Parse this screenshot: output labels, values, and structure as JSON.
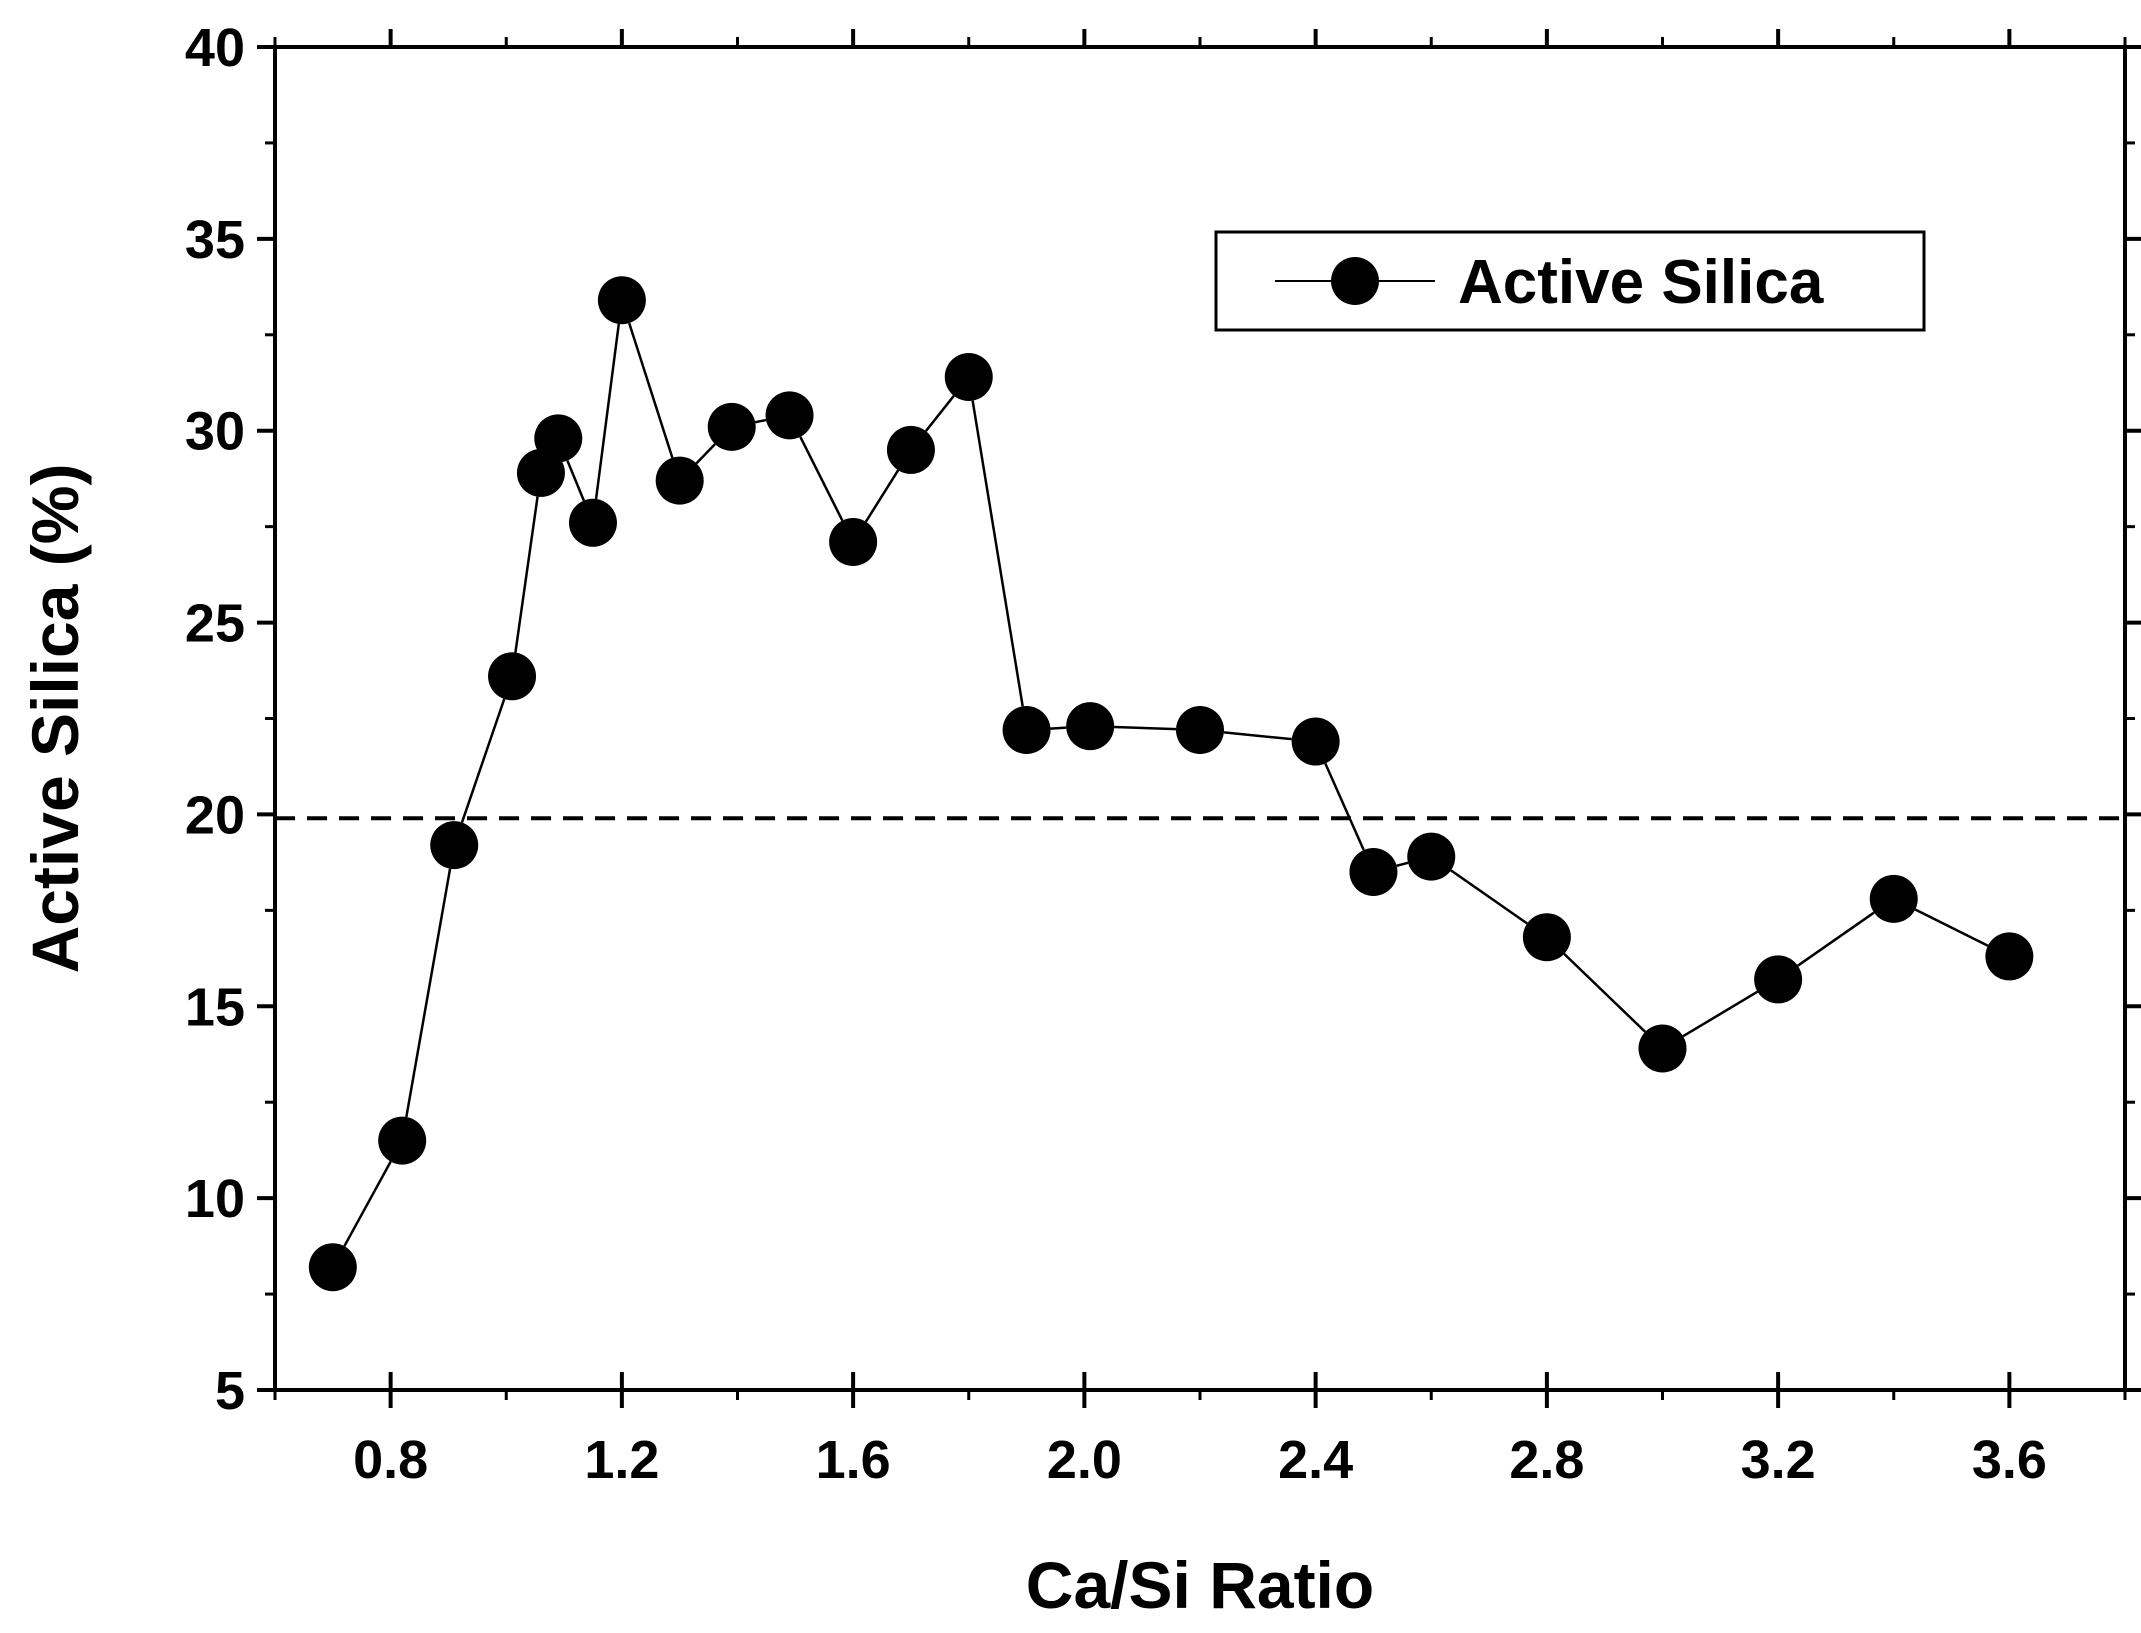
{
  "chart_data": {
    "type": "line",
    "title": "",
    "xlabel": "Ca/Si Ratio",
    "ylabel": "Active Silica (%)",
    "xlim": [
      0.6,
      3.8
    ],
    "ylim": [
      5,
      40
    ],
    "xticks": [
      0.8,
      1.2,
      1.6,
      2.0,
      2.4,
      2.8,
      3.2,
      3.6
    ],
    "xtick_labels": [
      "0.8",
      "1.2",
      "1.6",
      "2.0",
      "2.4",
      "2.8",
      "3.2",
      "3.6"
    ],
    "yticks": [
      5,
      10,
      15,
      20,
      25,
      30,
      35,
      40
    ],
    "ytick_labels": [
      "5",
      "10",
      "15",
      "20",
      "25",
      "30",
      "35",
      "40"
    ],
    "grid": false,
    "legend_position": "top-right",
    "reference_line": {
      "y": 19.9,
      "style": "dashed"
    },
    "series": [
      {
        "name": "Active Silica",
        "marker": "filled-circle",
        "color": "#000000",
        "x": [
          0.7,
          0.82,
          0.91,
          1.01,
          1.06,
          1.09,
          1.15,
          1.2,
          1.3,
          1.39,
          1.49,
          1.6,
          1.7,
          1.8,
          1.9,
          2.01,
          2.2,
          2.4,
          2.5,
          2.6,
          2.8,
          3.0,
          3.2,
          3.4,
          3.6
        ],
        "values": [
          8.2,
          11.5,
          19.2,
          23.6,
          28.9,
          29.8,
          27.6,
          33.4,
          28.7,
          30.1,
          30.4,
          27.1,
          29.5,
          31.4,
          22.2,
          22.3,
          22.2,
          21.9,
          18.5,
          18.9,
          16.8,
          13.9,
          15.7,
          17.8,
          16.3
        ]
      }
    ]
  }
}
